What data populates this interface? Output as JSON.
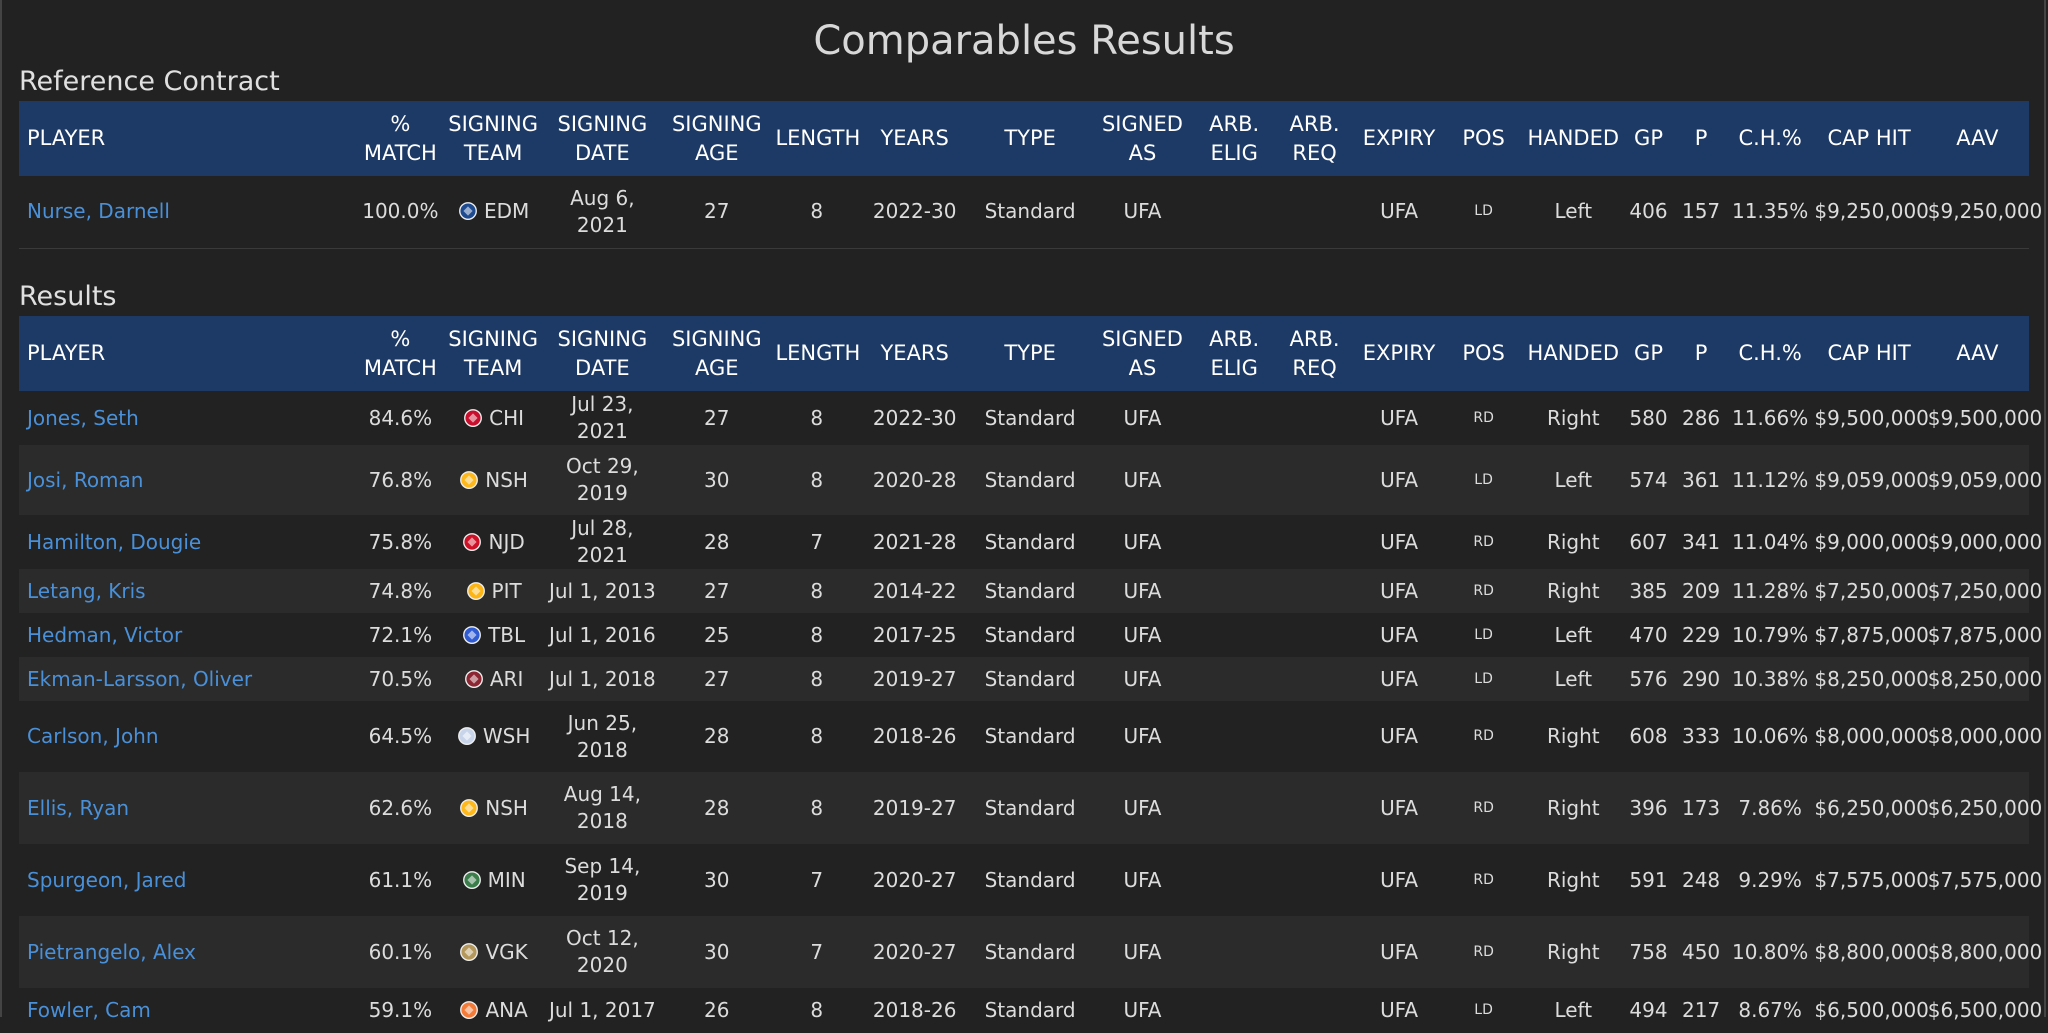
{
  "page_title": "Comparables Results",
  "reference_title": "Reference Contract",
  "results_title": "Results",
  "columns": {
    "player": "PLAYER",
    "match": "% MATCH",
    "team": "SIGNING TEAM",
    "date": "SIGNING DATE",
    "age": "SIGNING AGE",
    "length": "LENGTH",
    "years": "YEARS",
    "type": "TYPE",
    "signed_as": "SIGNED AS",
    "arb_elig": "ARB. ELIG",
    "arb_req": "ARB. REQ",
    "expiry": "EXPIRY",
    "pos": "POS",
    "handed": "HANDED",
    "gp": "GP",
    "p": "P",
    "ch": "C.H.%",
    "cap_hit": "CAP HIT",
    "aav": "AAV"
  },
  "reference": [
    {
      "player": "Nurse, Darnell",
      "match": "100.0%",
      "logo": "oilers-logo-icon",
      "logo_color": "#1e4b8f",
      "team": "EDM",
      "date": "Aug 6, 2021",
      "age": "27",
      "length": "8",
      "years": "2022-30",
      "type": "Standard",
      "signed_as": "UFA",
      "arb_elig": "",
      "arb_req": "",
      "expiry": "UFA",
      "pos": "LD",
      "handed": "Left",
      "gp": "406",
      "p": "157",
      "ch": "11.35%",
      "cap_hit": "$9,250,000",
      "aav": "$9,250,000"
    }
  ],
  "results": [
    {
      "player": "Jones, Seth",
      "match": "84.6%",
      "logo": "blackhawks-logo-icon",
      "logo_color": "#c8102e",
      "team": "CHI",
      "date": "Jul 23, 2021",
      "age": "27",
      "length": "8",
      "years": "2022-30",
      "type": "Standard",
      "signed_as": "UFA",
      "arb_elig": "",
      "arb_req": "",
      "expiry": "UFA",
      "pos": "RD",
      "handed": "Right",
      "gp": "580",
      "p": "286",
      "ch": "11.66%",
      "cap_hit": "$9,500,000",
      "aav": "$9,500,000"
    },
    {
      "player": "Josi, Roman",
      "match": "76.8%",
      "logo": "predators-logo-icon",
      "logo_color": "#ffb81c",
      "team": "NSH",
      "date": "Oct 29, 2019",
      "age": "30",
      "length": "8",
      "years": "2020-28",
      "type": "Standard",
      "signed_as": "UFA",
      "arb_elig": "",
      "arb_req": "",
      "expiry": "UFA",
      "pos": "LD",
      "handed": "Left",
      "gp": "574",
      "p": "361",
      "ch": "11.12%",
      "cap_hit": "$9,059,000",
      "aav": "$9,059,000"
    },
    {
      "player": "Hamilton, Dougie",
      "match": "75.8%",
      "logo": "devils-logo-icon",
      "logo_color": "#ce1126",
      "team": "NJD",
      "date": "Jul 28, 2021",
      "age": "28",
      "length": "7",
      "years": "2021-28",
      "type": "Standard",
      "signed_as": "UFA",
      "arb_elig": "",
      "arb_req": "",
      "expiry": "UFA",
      "pos": "RD",
      "handed": "Right",
      "gp": "607",
      "p": "341",
      "ch": "11.04%",
      "cap_hit": "$9,000,000",
      "aav": "$9,000,000"
    },
    {
      "player": "Letang, Kris",
      "match": "74.8%",
      "logo": "penguins-logo-icon",
      "logo_color": "#fcb514",
      "team": "PIT",
      "date": "Jul 1, 2013",
      "age": "27",
      "length": "8",
      "years": "2014-22",
      "type": "Standard",
      "signed_as": "UFA",
      "arb_elig": "",
      "arb_req": "",
      "expiry": "UFA",
      "pos": "RD",
      "handed": "Right",
      "gp": "385",
      "p": "209",
      "ch": "11.28%",
      "cap_hit": "$7,250,000",
      "aav": "$7,250,000"
    },
    {
      "player": "Hedman, Victor",
      "match": "72.1%",
      "logo": "lightning-logo-icon",
      "logo_color": "#2f5bd3",
      "team": "TBL",
      "date": "Jul 1, 2016",
      "age": "25",
      "length": "8",
      "years": "2017-25",
      "type": "Standard",
      "signed_as": "UFA",
      "arb_elig": "",
      "arb_req": "",
      "expiry": "UFA",
      "pos": "LD",
      "handed": "Left",
      "gp": "470",
      "p": "229",
      "ch": "10.79%",
      "cap_hit": "$7,875,000",
      "aav": "$7,875,000"
    },
    {
      "player": "Ekman-Larsson, Oliver",
      "match": "70.5%",
      "logo": "coyotes-logo-icon",
      "logo_color": "#8c2633",
      "team": "ARI",
      "date": "Jul 1, 2018",
      "age": "27",
      "length": "8",
      "years": "2019-27",
      "type": "Standard",
      "signed_as": "UFA",
      "arb_elig": "",
      "arb_req": "",
      "expiry": "UFA",
      "pos": "LD",
      "handed": "Left",
      "gp": "576",
      "p": "290",
      "ch": "10.38%",
      "cap_hit": "$8,250,000",
      "aav": "$8,250,000"
    },
    {
      "player": "Carlson, John",
      "match": "64.5%",
      "logo": "capitals-logo-icon",
      "logo_color": "#c8d4ea",
      "team": "WSH",
      "date": "Jun 25, 2018",
      "age": "28",
      "length": "8",
      "years": "2018-26",
      "type": "Standard",
      "signed_as": "UFA",
      "arb_elig": "",
      "arb_req": "",
      "expiry": "UFA",
      "pos": "RD",
      "handed": "Right",
      "gp": "608",
      "p": "333",
      "ch": "10.06%",
      "cap_hit": "$8,000,000",
      "aav": "$8,000,000"
    },
    {
      "player": "Ellis, Ryan",
      "match": "62.6%",
      "logo": "predators-logo-icon",
      "logo_color": "#ffb81c",
      "team": "NSH",
      "date": "Aug 14, 2018",
      "age": "28",
      "length": "8",
      "years": "2019-27",
      "type": "Standard",
      "signed_as": "UFA",
      "arb_elig": "",
      "arb_req": "",
      "expiry": "UFA",
      "pos": "RD",
      "handed": "Right",
      "gp": "396",
      "p": "173",
      "ch": "7.86%",
      "cap_hit": "$6,250,000",
      "aav": "$6,250,000"
    },
    {
      "player": "Spurgeon, Jared",
      "match": "61.1%",
      "logo": "wild-logo-icon",
      "logo_color": "#3b7d4a",
      "team": "MIN",
      "date": "Sep 14, 2019",
      "age": "30",
      "length": "7",
      "years": "2020-27",
      "type": "Standard",
      "signed_as": "UFA",
      "arb_elig": "",
      "arb_req": "",
      "expiry": "UFA",
      "pos": "RD",
      "handed": "Right",
      "gp": "591",
      "p": "248",
      "ch": "9.29%",
      "cap_hit": "$7,575,000",
      "aav": "$7,575,000"
    },
    {
      "player": "Pietrangelo, Alex",
      "match": "60.1%",
      "logo": "golden-knights-logo-icon",
      "logo_color": "#b4975a",
      "team": "VGK",
      "date": "Oct 12, 2020",
      "age": "30",
      "length": "7",
      "years": "2020-27",
      "type": "Standard",
      "signed_as": "UFA",
      "arb_elig": "",
      "arb_req": "",
      "expiry": "UFA",
      "pos": "RD",
      "handed": "Right",
      "gp": "758",
      "p": "450",
      "ch": "10.80%",
      "cap_hit": "$8,800,000",
      "aav": "$8,800,000"
    },
    {
      "player": "Fowler, Cam",
      "match": "59.1%",
      "logo": "ducks-logo-icon",
      "logo_color": "#f47a38",
      "team": "ANA",
      "date": "Jul 1, 2017",
      "age": "26",
      "length": "8",
      "years": "2018-26",
      "type": "Standard",
      "signed_as": "UFA",
      "arb_elig": "",
      "arb_req": "",
      "expiry": "UFA",
      "pos": "LD",
      "handed": "Left",
      "gp": "494",
      "p": "217",
      "ch": "8.67%",
      "cap_hit": "$6,500,000",
      "aav": "$6,500,000"
    }
  ]
}
